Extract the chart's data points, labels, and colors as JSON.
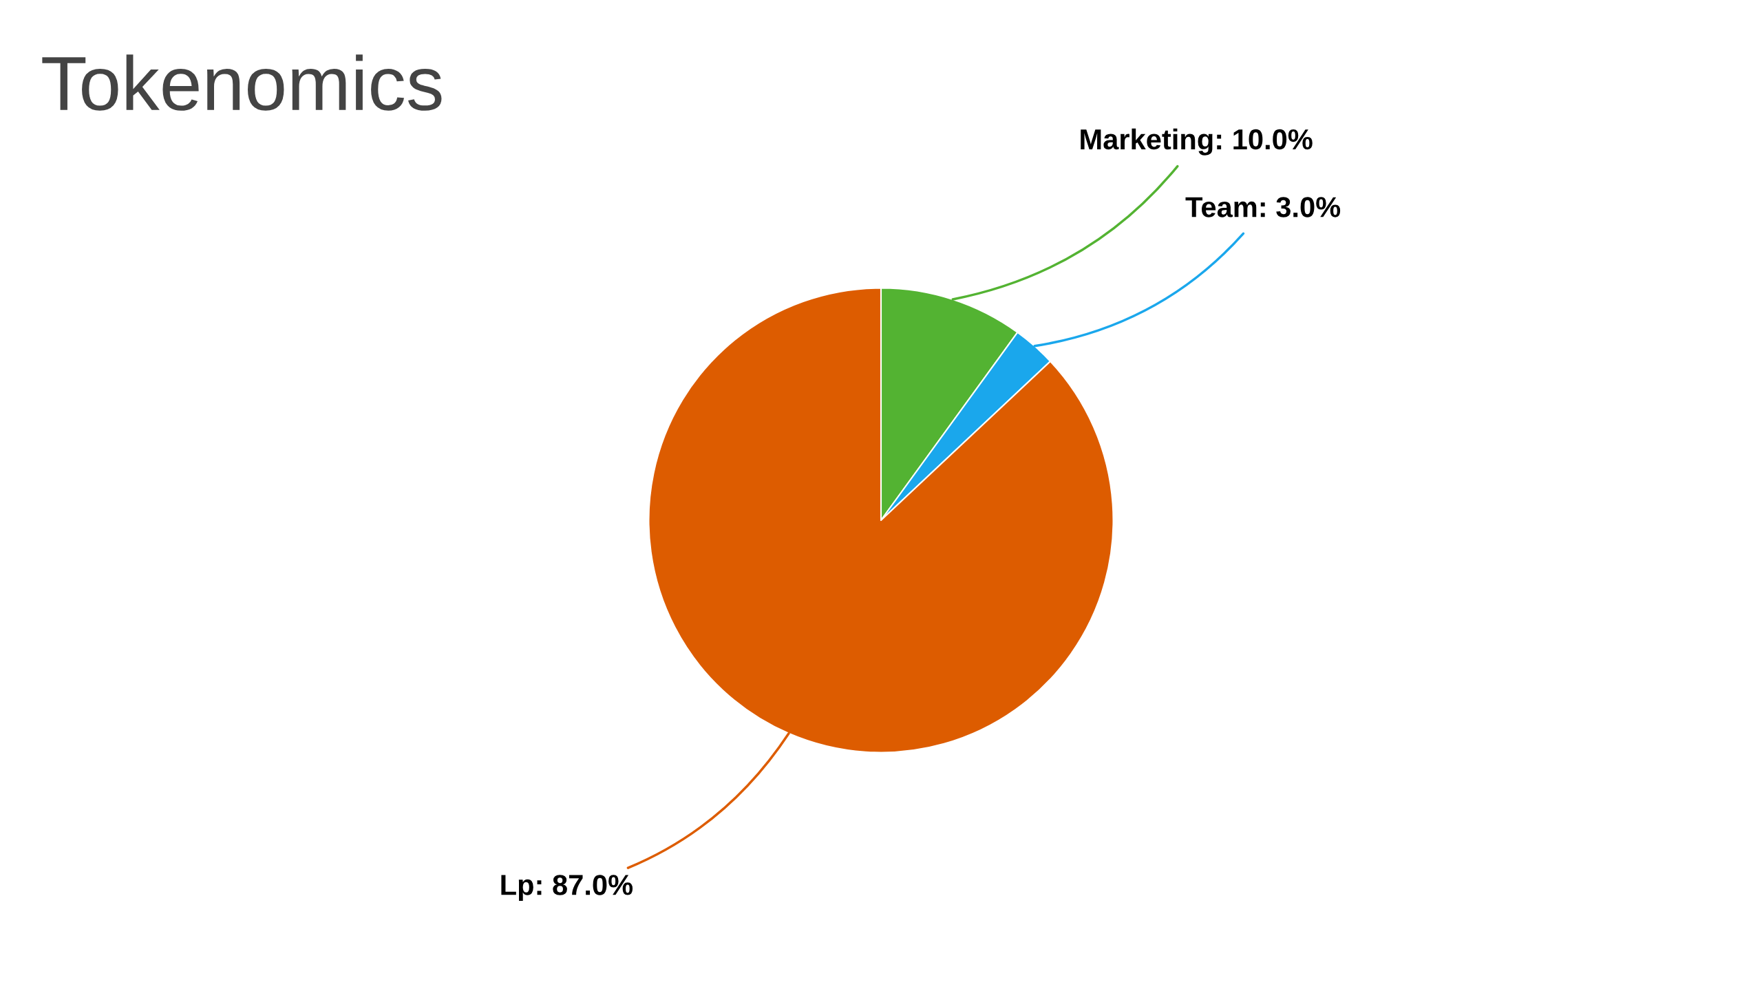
{
  "chart_data": {
    "type": "pie",
    "title": "Tokenomics",
    "categories": [
      "Marketing",
      "Team",
      "Lp"
    ],
    "values": [
      10.0,
      3.0,
      87.0
    ],
    "colors": [
      "#53b332",
      "#1aa7ec",
      "#dd5c00"
    ],
    "value_labels": [
      "10.0%",
      "3.0%",
      "87.0%"
    ],
    "legend": false
  }
}
